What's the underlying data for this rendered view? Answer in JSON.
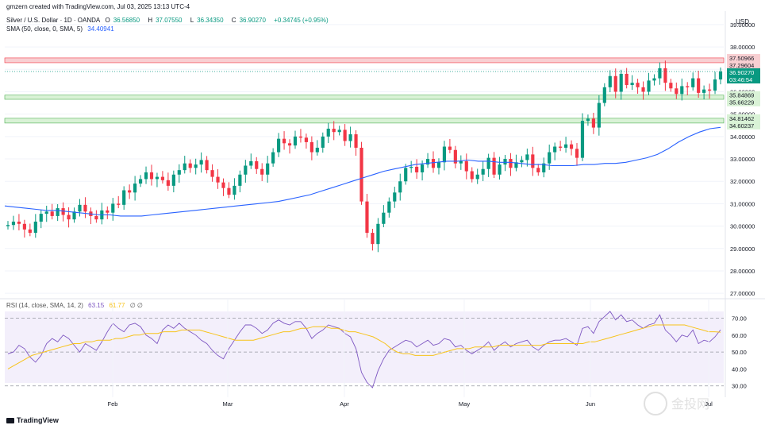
{
  "header": {
    "created": "gmzern created with TradingView.com, Jul 03, 2025 13:13 UTC-4",
    "symbol": "Silver / U.S. Dollar · 1D · OANDA",
    "ohlc": {
      "o_label": "O",
      "o": "36.56850",
      "h_label": "H",
      "h": "37.07550",
      "l_label": "L",
      "l": "36.34350",
      "c_label": "C",
      "c": "36.90270",
      "change": "+0.34745 (+0.95%)"
    },
    "sma_label": "SMA (50, close, 0, SMA, 5)",
    "sma_value": "34.40941",
    "rsi_label": "RSI (14, close, SMA, 14, 2)",
    "rsi_value": "63.15",
    "rsi_sma_value": "61.77",
    "rsi_extra": "∅ ∅"
  },
  "footer": {
    "logo": "TradingView",
    "watermark": "金投网"
  },
  "colors": {
    "up": "#089981",
    "down": "#f23645",
    "sma": "#2962ff",
    "rsi": "#7e57c2",
    "rsi_ma": "#f7c31a",
    "resistance_zone": "#f8cfd2",
    "support_zone": "#d9f2d6"
  },
  "chart_data": [
    {
      "type": "candlestick",
      "title": "Silver / U.S. Dollar · 1D · OANDA",
      "currency": "USD",
      "ylim": [
        26.9,
        39.6
      ],
      "y_ticks": [
        "39.00000",
        "38.00000",
        "37.00000",
        "36.00000",
        "35.00000",
        "34.00000",
        "33.00000",
        "32.00000",
        "31.00000",
        "30.00000",
        "29.00000",
        "28.00000",
        "27.00000"
      ],
      "x_ticks": [
        "Feb",
        "Mar",
        "Apr",
        "May",
        "Jun",
        "Jul"
      ],
      "price_labels": [
        {
          "text": "37.50966",
          "kind": "resistance"
        },
        {
          "text": "37.29604",
          "kind": "resistance"
        },
        {
          "text": "36.90270",
          "kind": "last"
        },
        {
          "text": "03:46:54",
          "kind": "countdown"
        },
        {
          "text": "35.84869",
          "kind": "support"
        },
        {
          "text": "35.66229",
          "kind": "support"
        },
        {
          "text": "34.81462",
          "kind": "support"
        },
        {
          "text": "34.60237",
          "kind": "support"
        }
      ],
      "zones": [
        {
          "name": "resistance",
          "low": 37.296,
          "high": 37.51
        },
        {
          "name": "support-upper",
          "low": 35.662,
          "high": 35.849
        },
        {
          "name": "support-lower",
          "low": 34.602,
          "high": 34.815
        }
      ],
      "closes": [
        30.05,
        30.2,
        30.1,
        29.85,
        29.7,
        30.2,
        30.55,
        30.65,
        30.45,
        30.8,
        30.5,
        30.3,
        30.65,
        30.95,
        30.65,
        30.45,
        30.3,
        30.7,
        30.6,
        31.0,
        30.95,
        31.6,
        31.5,
        31.9,
        32.1,
        32.4,
        32.1,
        32.2,
        32.05,
        31.8,
        32.3,
        32.5,
        32.8,
        32.6,
        32.75,
        32.95,
        32.5,
        32.2,
        31.95,
        31.7,
        31.4,
        31.8,
        32.3,
        32.7,
        32.9,
        32.55,
        32.3,
        32.8,
        33.3,
        33.9,
        33.7,
        33.6,
        34.0,
        33.95,
        33.75,
        33.3,
        33.5,
        34.0,
        34.35,
        34.2,
        34.3,
        33.8,
        34.1,
        33.5,
        31.1,
        29.7,
        29.2,
        30.1,
        30.6,
        31.1,
        31.5,
        32.0,
        32.6,
        32.65,
        32.4,
        32.75,
        33.0,
        32.6,
        32.85,
        33.55,
        33.4,
        32.8,
        32.9,
        32.45,
        32.1,
        32.3,
        32.55,
        33.05,
        32.3,
        32.75,
        33.0,
        32.6,
        32.85,
        32.95,
        33.2,
        32.6,
        32.4,
        32.8,
        33.3,
        33.55,
        33.5,
        33.65,
        33.45,
        33.05,
        34.7,
        34.8,
        34.4,
        35.5,
        36.2,
        36.7,
        36.0,
        36.8,
        36.3,
        36.4,
        36.2,
        36.0,
        36.5,
        36.6,
        37.05,
        36.4,
        36.15,
        35.9,
        36.25,
        36.2,
        36.6,
        35.95,
        36.1,
        36.05,
        36.55,
        36.9
      ],
      "opens": [
        30.0,
        30.05,
        30.2,
        30.1,
        29.85,
        29.7,
        30.2,
        30.55,
        30.65,
        30.45,
        30.8,
        30.5,
        30.3,
        30.65,
        30.95,
        30.65,
        30.45,
        30.3,
        30.7,
        30.6,
        31.0,
        30.95,
        31.6,
        31.5,
        31.9,
        32.1,
        32.4,
        32.1,
        32.2,
        32.05,
        31.8,
        32.3,
        32.5,
        32.8,
        32.6,
        32.75,
        32.95,
        32.5,
        32.2,
        31.95,
        31.7,
        31.4,
        31.8,
        32.3,
        32.7,
        32.9,
        32.55,
        32.3,
        32.8,
        33.3,
        33.9,
        33.7,
        33.6,
        34.0,
        33.95,
        33.75,
        33.3,
        33.5,
        34.0,
        34.35,
        34.2,
        34.3,
        33.8,
        34.1,
        33.5,
        31.1,
        29.7,
        29.2,
        30.1,
        30.6,
        31.1,
        31.5,
        32.0,
        32.6,
        32.65,
        32.4,
        32.75,
        33.0,
        32.6,
        32.85,
        33.55,
        33.4,
        32.8,
        32.9,
        32.45,
        32.1,
        32.3,
        32.55,
        33.05,
        32.3,
        32.75,
        33.0,
        32.6,
        32.85,
        32.95,
        33.2,
        32.6,
        32.4,
        32.8,
        33.3,
        33.55,
        33.5,
        33.65,
        33.45,
        33.05,
        34.7,
        34.8,
        34.4,
        35.5,
        36.2,
        36.7,
        36.0,
        36.8,
        36.3,
        36.4,
        36.2,
        36.0,
        36.5,
        36.6,
        37.05,
        36.4,
        36.15,
        35.9,
        36.25,
        36.2,
        36.6,
        35.95,
        36.1,
        36.05,
        36.55
      ],
      "sma": [
        30.9,
        30.85,
        30.8,
        30.75,
        30.7,
        30.7,
        30.65,
        30.6,
        30.55,
        30.5,
        30.5,
        30.45,
        30.45,
        30.45,
        30.5,
        30.55,
        30.6,
        30.65,
        30.7,
        30.75,
        30.8,
        30.85,
        30.9,
        30.95,
        31.0,
        31.05,
        31.1,
        31.2,
        31.3,
        31.4,
        31.55,
        31.7,
        31.85,
        32.0,
        32.15,
        32.3,
        32.45,
        32.55,
        32.65,
        32.75,
        32.8,
        32.85,
        32.9,
        32.9,
        32.95,
        32.9,
        32.9,
        32.85,
        32.85,
        32.8,
        32.75,
        32.75,
        32.7,
        32.7,
        32.7,
        32.75,
        32.75,
        32.8,
        32.8,
        32.85,
        32.95,
        33.05,
        33.2,
        33.45,
        33.75,
        34.0,
        34.2,
        34.35,
        34.41
      ]
    },
    {
      "type": "line",
      "title": "RSI (14, close, SMA, 14, 2)",
      "ylim": [
        28,
        74
      ],
      "y_ticks": [
        "70.00",
        "60.00",
        "50.00",
        "40.00",
        "30.00"
      ],
      "bands": [
        30,
        50,
        70
      ],
      "series": [
        {
          "name": "RSI",
          "values": [
            49,
            50,
            54,
            52,
            47,
            44,
            48,
            55,
            58,
            56,
            60,
            58,
            54,
            50,
            55,
            53,
            51,
            56,
            62,
            67,
            64,
            62,
            66,
            67,
            65,
            60,
            58,
            55,
            63,
            66,
            64,
            67,
            64,
            62,
            60,
            57,
            55,
            51,
            48,
            46,
            52,
            57,
            62,
            66,
            66,
            64,
            61,
            63,
            67,
            69,
            67,
            66,
            68,
            68,
            64,
            58,
            61,
            63,
            66,
            65,
            64,
            61,
            59,
            52,
            38,
            32,
            29,
            39,
            46,
            51,
            53,
            55,
            57,
            56,
            53,
            55,
            57,
            54,
            55,
            58,
            57,
            53,
            54,
            51,
            49,
            51,
            53,
            56,
            51,
            54,
            56,
            53,
            55,
            56,
            57,
            53,
            51,
            54,
            56,
            57,
            57,
            58,
            56,
            54,
            64,
            65,
            61,
            68,
            71,
            74,
            69,
            72,
            68,
            69,
            66,
            64,
            66,
            67,
            72,
            63,
            60,
            56,
            60,
            59,
            63,
            55,
            57,
            56,
            59,
            63.15
          ]
        },
        {
          "name": "RSI MA",
          "values": [
            40,
            42,
            44,
            46,
            48,
            49,
            50,
            51,
            52,
            53,
            54,
            55,
            55,
            56,
            56,
            57,
            57,
            57,
            58,
            58,
            59,
            60,
            60,
            61,
            61,
            61,
            62,
            62,
            62,
            63,
            63,
            63,
            63,
            62,
            61,
            60,
            59,
            58,
            57,
            57,
            57,
            57,
            58,
            59,
            60,
            61,
            62,
            62,
            63,
            64,
            64,
            65,
            65,
            65,
            64,
            64,
            63,
            62,
            62,
            61,
            60,
            59,
            57,
            55,
            52,
            50,
            49,
            49,
            48,
            48,
            48,
            48,
            49,
            50,
            51,
            52,
            52,
            52,
            53,
            53,
            53,
            53,
            54,
            54,
            54,
            54,
            54,
            54,
            54,
            54,
            55,
            55,
            55,
            55,
            55,
            55,
            55,
            56,
            56,
            57,
            58,
            59,
            60,
            61,
            62,
            63,
            64,
            65,
            66,
            66,
            66,
            66,
            66,
            66,
            65,
            64,
            63,
            62,
            62,
            61.77
          ]
        }
      ]
    }
  ]
}
